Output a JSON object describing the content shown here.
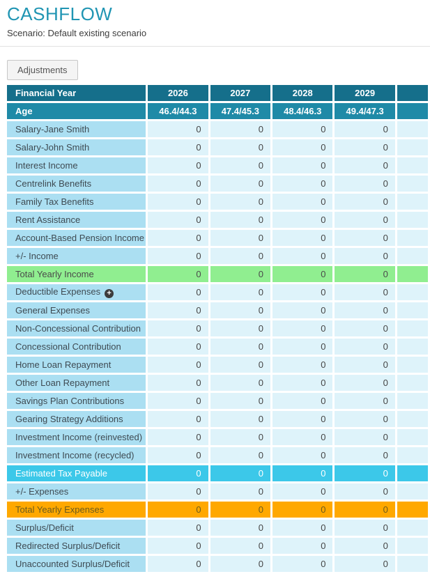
{
  "page": {
    "title": "CASHFLOW",
    "subtitle": "Scenario: Default existing scenario"
  },
  "toolbar": {
    "adjustments_label": "Adjustments"
  },
  "colors": {
    "title_accent": "#2095b3",
    "header_row": "#156f8b",
    "age_row": "#1f8aa7",
    "label_cell": "#abdff2",
    "value_cell": "#def3fa",
    "total_income_row": "#90ee90",
    "tax_row": "#3cc8e9",
    "total_expenses_row": "#ffa800"
  },
  "table": {
    "header": {
      "label": "Financial Year",
      "values": [
        "2026",
        "2027",
        "2028",
        "2029"
      ]
    },
    "age_row": {
      "label": "Age",
      "values": [
        "46.4/44.3",
        "47.4/45.3",
        "48.4/46.3",
        "49.4/47.3"
      ]
    },
    "rows": [
      {
        "label": "Salary-Jane Smith",
        "values": [
          "0",
          "0",
          "0",
          "0"
        ],
        "style": "normal"
      },
      {
        "label": "Salary-John Smith",
        "values": [
          "0",
          "0",
          "0",
          "0"
        ],
        "style": "normal"
      },
      {
        "label": "Interest Income",
        "values": [
          "0",
          "0",
          "0",
          "0"
        ],
        "style": "normal"
      },
      {
        "label": "Centrelink Benefits",
        "values": [
          "0",
          "0",
          "0",
          "0"
        ],
        "style": "normal"
      },
      {
        "label": "Family Tax Benefits",
        "values": [
          "0",
          "0",
          "0",
          "0"
        ],
        "style": "normal"
      },
      {
        "label": "Rent Assistance",
        "values": [
          "0",
          "0",
          "0",
          "0"
        ],
        "style": "normal"
      },
      {
        "label": "Account-Based Pension Income",
        "values": [
          "0",
          "0",
          "0",
          "0"
        ],
        "style": "normal"
      },
      {
        "label": "+/- Income",
        "values": [
          "0",
          "0",
          "0",
          "0"
        ],
        "style": "normal"
      },
      {
        "label": "Total Yearly Income",
        "values": [
          "0",
          "0",
          "0",
          "0"
        ],
        "style": "green"
      },
      {
        "label": "Deductible Expenses",
        "values": [
          "0",
          "0",
          "0",
          "0"
        ],
        "style": "normal",
        "icon": "plus-circle"
      },
      {
        "label": "General Expenses",
        "values": [
          "0",
          "0",
          "0",
          "0"
        ],
        "style": "normal"
      },
      {
        "label": "Non-Concessional Contribution",
        "values": [
          "0",
          "0",
          "0",
          "0"
        ],
        "style": "normal"
      },
      {
        "label": "Concessional Contribution",
        "values": [
          "0",
          "0",
          "0",
          "0"
        ],
        "style": "normal"
      },
      {
        "label": "Home Loan Repayment",
        "values": [
          "0",
          "0",
          "0",
          "0"
        ],
        "style": "normal"
      },
      {
        "label": "Other Loan Repayment",
        "values": [
          "0",
          "0",
          "0",
          "0"
        ],
        "style": "normal"
      },
      {
        "label": "Savings Plan Contributions",
        "values": [
          "0",
          "0",
          "0",
          "0"
        ],
        "style": "normal"
      },
      {
        "label": "Gearing Strategy Additions",
        "values": [
          "0",
          "0",
          "0",
          "0"
        ],
        "style": "normal"
      },
      {
        "label": "Investment Income (reinvested)",
        "values": [
          "0",
          "0",
          "0",
          "0"
        ],
        "style": "normal"
      },
      {
        "label": "Investment Income (recycled)",
        "values": [
          "0",
          "0",
          "0",
          "0"
        ],
        "style": "normal"
      },
      {
        "label": "Estimated Tax Payable",
        "values": [
          "0",
          "0",
          "0",
          "0"
        ],
        "style": "cyan"
      },
      {
        "label": "+/- Expenses",
        "values": [
          "0",
          "0",
          "0",
          "0"
        ],
        "style": "normal"
      },
      {
        "label": "Total Yearly Expenses",
        "values": [
          "0",
          "0",
          "0",
          "0"
        ],
        "style": "orange"
      },
      {
        "label": "Surplus/Deficit",
        "values": [
          "0",
          "0",
          "0",
          "0"
        ],
        "style": "normal"
      },
      {
        "label": "Redirected Surplus/Deficit",
        "values": [
          "0",
          "0",
          "0",
          "0"
        ],
        "style": "normal"
      },
      {
        "label": "Unaccounted Surplus/Deficit",
        "values": [
          "0",
          "0",
          "0",
          "0"
        ],
        "style": "normal"
      }
    ]
  }
}
